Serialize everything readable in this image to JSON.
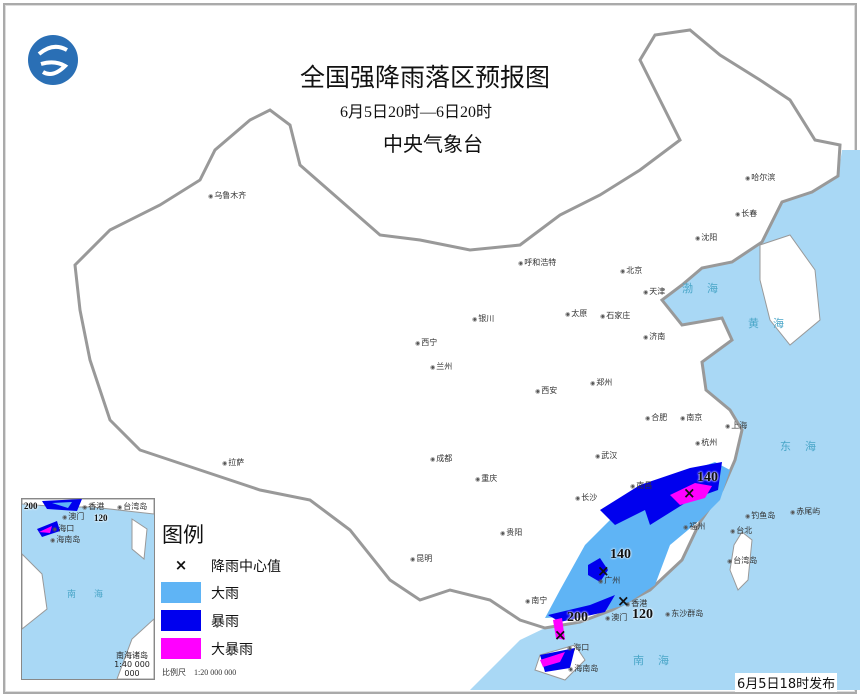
{
  "header": {
    "title": "全国强降雨落区预报图",
    "period": "6月5日20时—6日20时",
    "organization": "中央气象台",
    "logo_icon": "cma-logo-icon"
  },
  "cities": [
    {
      "name": "乌鲁木齐"
    },
    {
      "name": "哈尔滨"
    },
    {
      "name": "长春"
    },
    {
      "name": "沈阳"
    },
    {
      "name": "呼和浩特"
    },
    {
      "name": "北京"
    },
    {
      "name": "天津"
    },
    {
      "name": "石家庄"
    },
    {
      "name": "太原"
    },
    {
      "name": "银川"
    },
    {
      "name": "西宁"
    },
    {
      "name": "兰州"
    },
    {
      "name": "济南"
    },
    {
      "name": "郑州"
    },
    {
      "name": "西安"
    },
    {
      "name": "合肥"
    },
    {
      "name": "南京"
    },
    {
      "name": "上海"
    },
    {
      "name": "杭州"
    },
    {
      "name": "武汉"
    },
    {
      "name": "成都"
    },
    {
      "name": "重庆"
    },
    {
      "name": "拉萨"
    },
    {
      "name": "长沙"
    },
    {
      "name": "南昌"
    },
    {
      "name": "贵阳"
    },
    {
      "name": "昆明"
    },
    {
      "name": "南宁"
    },
    {
      "name": "福州"
    },
    {
      "name": "广州"
    },
    {
      "name": "香港"
    },
    {
      "name": "澳门"
    },
    {
      "name": "海口"
    },
    {
      "name": "台北"
    }
  ],
  "islands": [
    "台湾岛",
    "钓鱼岛",
    "赤尾屿",
    "东沙群岛",
    "海南岛"
  ],
  "seas": [
    "渤海",
    "黄海",
    "东海",
    "南海"
  ],
  "rain_centers": [
    "140",
    "140",
    "120",
    "200"
  ],
  "legend": {
    "title": "图例",
    "items": [
      {
        "label": "降雨中心值",
        "symbol": "×"
      },
      {
        "label": "大雨",
        "color": "#5fb4f5"
      },
      {
        "label": "暴雨",
        "color": "#0000ee"
      },
      {
        "label": "大暴雨",
        "color": "#ff00ff"
      }
    ],
    "scale": "比例尺　1:20 000 000"
  },
  "inset": {
    "title": "南海诸岛",
    "scale": "1:40 000 000",
    "labels": [
      "200",
      "香港",
      "台湾岛",
      "澳门",
      "120",
      "海口",
      "海南岛",
      "南海"
    ]
  },
  "issued": "6月5日18时发布",
  "colors": {
    "ocean": "#a9d8f5",
    "border": "#999999"
  }
}
